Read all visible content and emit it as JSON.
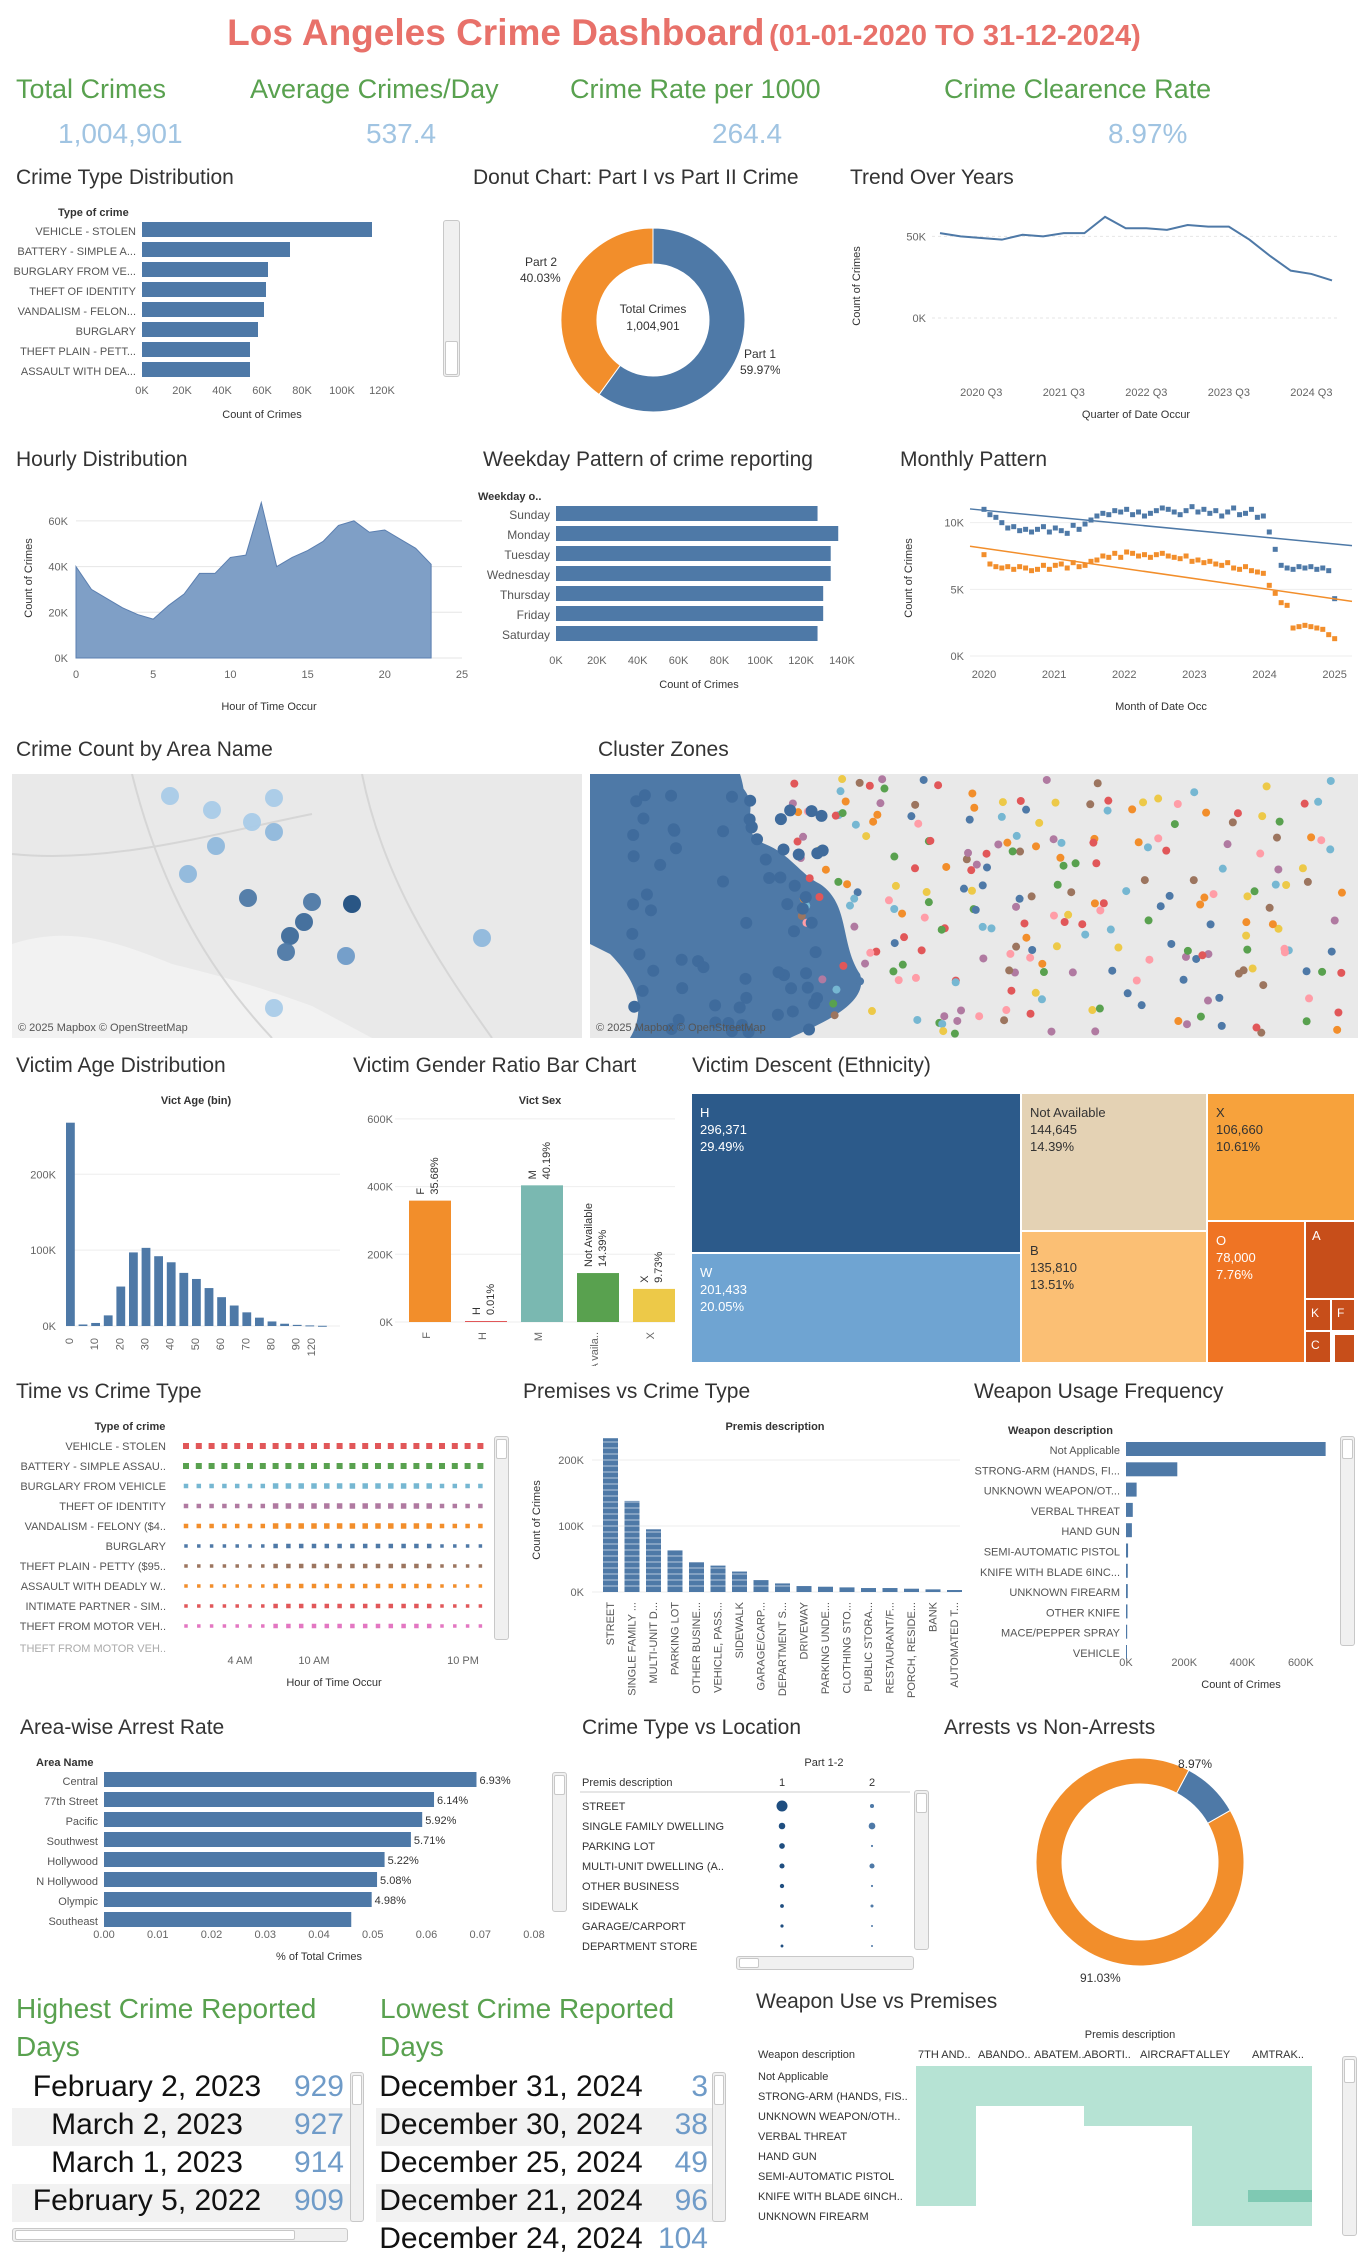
{
  "title": "Los Angeles Crime Dashboard",
  "date_range": "(01-01-2020 TO 31-12-2024)",
  "kpis": [
    {
      "label": "Total Crimes",
      "value": "1,004,901"
    },
    {
      "label": "Average Crimes/Day",
      "value": "537.4"
    },
    {
      "label": "Crime Rate per 1000",
      "value": "264.4"
    },
    {
      "label": "Crime Clearence Rate",
      "value": "8.97%"
    }
  ],
  "colors": {
    "blue": "#4e79a7",
    "orange": "#f28e2b",
    "green": "#59a14f",
    "title": "#e8716a",
    "teal": "#7ab8b1",
    "mint": "#b6e3d4"
  },
  "titles": {
    "crime_type": "Crime Type Distribution",
    "donut": "Donut Chart: Part I vs Part II Crime",
    "trend": "Trend Over Years",
    "hourly": "Hourly Distribution",
    "weekday": "Weekday Pattern of crime reporting",
    "monthly": "Monthly Pattern",
    "area_map": "Crime Count by Area Name",
    "cluster": "Cluster Zones",
    "age": "Victim Age Distribution",
    "gender": "Victim Gender Ratio Bar Chart",
    "descent": "Victim Descent (Ethnicity)",
    "time_type": "Time vs Crime Type",
    "premises": "Premises vs Crime Type",
    "weapon": "Weapon Usage Frequency",
    "arrest_rate": "Area-wise Arrest Rate",
    "type_loc": "Crime Type vs Location",
    "arrests": "Arrests vs Non-Arrests",
    "highest": "Highest Crime Reported Days",
    "lowest": "Lowest Crime Reported Days",
    "weapon_prem": "Weapon Use vs Premises"
  },
  "map_caption": "© 2025 Mapbox © OpenStreetMap",
  "crime_type_chart": {
    "header": "Type of crime",
    "xlabel": "Count of Crimes",
    "categories": [
      "VEHICLE - STOLEN",
      "BATTERY - SIMPLE A...",
      "BURGLARY FROM VE...",
      "THEFT OF IDENTITY",
      "VANDALISM - FELON...",
      "BURGLARY",
      "THEFT PLAIN - PETT...",
      "ASSAULT WITH DEA..."
    ],
    "values": [
      115000,
      74000,
      63000,
      62000,
      61000,
      58000,
      54000,
      54000
    ],
    "ticks": [
      "0K",
      "20K",
      "40K",
      "60K",
      "80K",
      "100K",
      "120K"
    ]
  },
  "donut_chart": {
    "center_label": "Total Crimes",
    "center_value": "1,004,901",
    "slices": [
      {
        "name": "Part 1",
        "pct": "59.97%",
        "value": 59.97
      },
      {
        "name": "Part 2",
        "pct": "40.03%",
        "value": 40.03
      }
    ]
  },
  "trend_chart": {
    "xlabel": "Quarter of Date Occur",
    "ylabel": "Count of Crimes",
    "yticks": [
      "50K",
      "0K"
    ],
    "xticks": [
      "2020 Q3",
      "2021 Q3",
      "2022 Q3",
      "2023 Q3",
      "2024 Q3"
    ],
    "values": [
      52000,
      50000,
      49000,
      48000,
      51000,
      50000,
      52000,
      52000,
      62000,
      55000,
      55000,
      54000,
      57000,
      56000,
      56000,
      48000,
      38000,
      29000,
      27000,
      23000
    ]
  },
  "hourly_chart": {
    "xlabel": "Hour of Time Occur",
    "ylabel": "Count of Crimes",
    "yticks": [
      "60K",
      "40K",
      "20K",
      "0K"
    ],
    "xticks": [
      "0",
      "5",
      "10",
      "15",
      "20",
      "25"
    ],
    "values": [
      40000,
      30000,
      26000,
      22000,
      19000,
      17000,
      23000,
      28000,
      37000,
      37000,
      44000,
      45000,
      68000,
      40000,
      44000,
      47000,
      51000,
      58000,
      60000,
      55000,
      56000,
      52000,
      48000,
      41000
    ]
  },
  "weekday_chart": {
    "header": "Weekday o..",
    "xlabel": "Count of Crimes",
    "categories": [
      "Sunday",
      "Monday",
      "Tuesday",
      "Wednesday",
      "Thursday",
      "Friday",
      "Saturday"
    ],
    "values": [
      139000,
      150000,
      146000,
      146000,
      142000,
      142000,
      139000
    ],
    "ticks": [
      "0K",
      "20K",
      "40K",
      "60K",
      "80K",
      "100K",
      "120K",
      "140K"
    ]
  },
  "monthly_chart": {
    "xlabel": "Month of Date Occ",
    "ylabel": "Count of Crimes",
    "yticks": [
      "10K",
      "5K",
      "0K"
    ],
    "xticks": [
      "2020",
      "2021",
      "2022",
      "2023",
      "2024",
      "2025"
    ],
    "series": [
      {
        "name": "Part 1",
        "color": "#4e79a7",
        "values": [
          11000,
          10600,
          10400,
          10000,
          9600,
          9700,
          9400,
          9500,
          9300,
          9500,
          9700,
          9300,
          9600,
          9400,
          9200,
          9800,
          9500,
          9900,
          10200,
          10500,
          10700,
          10600,
          10900,
          10800,
          11000,
          10600,
          10800,
          10500,
          10700,
          10900,
          11100,
          11000,
          10800,
          10600,
          10900,
          11200,
          10800,
          11000,
          10700,
          10900,
          10500,
          10800,
          11100,
          10600,
          10700,
          11000,
          10400,
          10500,
          9300,
          8000,
          6800,
          6600,
          6500,
          6700,
          6600,
          6700,
          6500,
          6600,
          6400,
          4300
        ]
      },
      {
        "name": "Part 2",
        "color": "#f28e2b",
        "values": [
          7600,
          6900,
          6700,
          6600,
          6700,
          6500,
          6700,
          6600,
          6400,
          6500,
          6800,
          6500,
          6800,
          6900,
          6600,
          7000,
          6700,
          6800,
          7100,
          7200,
          7500,
          7400,
          7700,
          7400,
          7800,
          7700,
          7500,
          7600,
          7400,
          7600,
          7700,
          7500,
          7400,
          7300,
          7500,
          7100,
          7200,
          7000,
          7100,
          6900,
          6800,
          7000,
          6600,
          6500,
          6700,
          6400,
          6300,
          6200,
          5300,
          4700,
          4000,
          3800,
          2100,
          2200,
          2300,
          2200,
          2100,
          2000,
          1600,
          1300
        ]
      }
    ]
  },
  "age_chart": {
    "header": "Vict Age (bin)",
    "yticks": [
      "200K",
      "100K",
      "0K"
    ],
    "xticks": [
      "0",
      "10",
      "20",
      "30",
      "40",
      "50",
      "60",
      "70",
      "80",
      "90",
      "120"
    ],
    "values": [
      268000,
      2000,
      4000,
      14000,
      52000,
      97000,
      103000,
      92000,
      84000,
      70000,
      62000,
      50000,
      38000,
      27000,
      18000,
      11000,
      6000,
      3000,
      1500,
      800,
      300
    ]
  },
  "gender_chart": {
    "header": "Vict Sex",
    "yticks": [
      "600K",
      "400K",
      "200K",
      "0K"
    ],
    "bars": [
      {
        "cat": "F",
        "pct": "35.68%",
        "value": 358600,
        "color": "#f28e2b"
      },
      {
        "cat": "H",
        "pct": "0.01%",
        "value": 100,
        "color": "#e15759"
      },
      {
        "cat": "M",
        "pct": "40.19%",
        "value": 403800,
        "color": "#7ab8b1"
      },
      {
        "cat": "Not A vaila..",
        "label": "Not Available",
        "pct": "14.39%",
        "value": 144600,
        "color": "#59a14f"
      },
      {
        "cat": "X",
        "pct": "9.73%",
        "value": 97800,
        "color": "#edc948"
      }
    ]
  },
  "descent": {
    "tiles": [
      {
        "code": "H",
        "value": "296,371",
        "pct": "29.49%"
      },
      {
        "code": "W",
        "value": "201,433",
        "pct": "20.05%"
      },
      {
        "code": "Not Available",
        "value": "144,645",
        "pct": "14.39%"
      },
      {
        "code": "B",
        "value": "135,810",
        "pct": "13.51%"
      },
      {
        "code": "X",
        "value": "106,660",
        "pct": "10.61%"
      },
      {
        "code": "O",
        "value": "78,000",
        "pct": "7.76%"
      },
      {
        "code": "A"
      },
      {
        "code": "K"
      },
      {
        "code": "F"
      },
      {
        "code": "C"
      }
    ]
  },
  "time_type": {
    "header": "Type of crime",
    "xlabel": "Hour of Time Occur",
    "xticks": [
      "4 AM",
      "10 AM",
      "10 PM"
    ],
    "categories": [
      "VEHICLE - STOLEN",
      "BATTERY - SIMPLE ASSAU..",
      "BURGLARY FROM VEHICLE",
      "THEFT OF IDENTITY",
      "VANDALISM - FELONY ($4..",
      "BURGLARY",
      "THEFT PLAIN - PETTY ($95..",
      "ASSAULT WITH DEADLY W..",
      "INTIMATE PARTNER - SIM..",
      "THEFT FROM MOTOR VEH..",
      "THEFT FROM MOTOR VEH.."
    ],
    "colors": [
      "#e15759",
      "#59a14f",
      "#76b7d2",
      "#b07aa1",
      "#f28e2b",
      "#4e79a7",
      "#9c755f",
      "#f28e2b",
      "#e15759",
      "#e377c2",
      "#e15759"
    ]
  },
  "premises_chart": {
    "header": "Premis description",
    "ylabel": "Count of Crimes",
    "yticks": [
      "200K",
      "100K",
      "0K"
    ],
    "categories": [
      "STREET",
      "SINGLE FAMILY ...",
      "MULTI-UNIT D...",
      "PARKING LOT",
      "OTHER BUSINE...",
      "VEHICLE, PASS...",
      "SIDEWALK",
      "GARAGE/CARP...",
      "DEPARTMENT S...",
      "DRIVEWAY",
      "PARKING UNDE...",
      "CLOTHING STO...",
      "PUBLIC STORA...",
      "RESTAURANT/F...",
      "PORCH, RESIDE...",
      "BANK",
      "AUTOMATED T..."
    ],
    "values": [
      233000,
      138000,
      95000,
      63000,
      45000,
      40000,
      31000,
      18000,
      13000,
      9000,
      8000,
      7000,
      6000,
      6000,
      5000,
      4000,
      3000
    ]
  },
  "weapon_chart": {
    "header": "Weapon description",
    "xlabel": "Count of Crimes",
    "ticks": [
      "0K",
      "200K",
      "400K",
      "600K"
    ],
    "categories": [
      "Not Applicable",
      "STRONG-ARM (HANDS, FI...",
      "UNKNOWN WEAPON/OT...",
      "VERBAL THREAT",
      "HAND GUN",
      "SEMI-AUTOMATIC PISTOL",
      "KNIFE WITH BLADE 6INC...",
      "UNKNOWN FIREARM",
      "OTHER KNIFE",
      "MACE/PEPPER SPRAY",
      "VEHICLE"
    ],
    "values": [
      677000,
      174000,
      36000,
      23000,
      20000,
      7000,
      6000,
      6000,
      5000,
      4000,
      3000
    ]
  },
  "arrest_rate": {
    "header": "Area Name",
    "xlabel": "% of Total Crimes",
    "ticks": [
      "0.00",
      "0.01",
      "0.02",
      "0.03",
      "0.04",
      "0.05",
      "0.06",
      "0.07",
      "0.08"
    ],
    "categories": [
      "Central",
      "77th Street",
      "Pacific",
      "Southwest",
      "Hollywood",
      "N Hollywood",
      "Olympic",
      "Southeast"
    ],
    "values": [
      0.0693,
      0.0614,
      0.0592,
      0.0571,
      0.0522,
      0.0508,
      0.0498,
      0.046
    ],
    "labels": [
      "6.93%",
      "6.14%",
      "5.92%",
      "5.71%",
      "5.22%",
      "5.08%",
      "4.98%",
      ""
    ]
  },
  "type_loc": {
    "title_top": "Part 1-2",
    "header": "Premis description",
    "cols": [
      "1",
      "2"
    ],
    "rows": [
      "STREET",
      "SINGLE FAMILY DWELLING",
      "PARKING LOT",
      "MULTI-UNIT DWELLING (A..",
      "OTHER BUSINESS",
      "SIDEWALK",
      "GARAGE/CARPORT",
      "DEPARTMENT STORE"
    ],
    "p1": [
      130000,
      46000,
      35000,
      28000,
      20000,
      15000,
      11000,
      9000
    ],
    "p2": [
      18000,
      48000,
      5000,
      28000,
      5000,
      10000,
      3000,
      3000
    ]
  },
  "arrests_donut": {
    "slices": [
      {
        "name": "Arrests",
        "pct": "8.97%",
        "value": 8.97
      },
      {
        "name": "Non-Arrests",
        "pct": "91.03%",
        "value": 91.03
      }
    ]
  },
  "highest_days": [
    {
      "date": "February 2, 2023",
      "count": "929"
    },
    {
      "date": "March 2, 2023",
      "count": "927"
    },
    {
      "date": "March 1, 2023",
      "count": "914"
    },
    {
      "date": "February 5, 2022",
      "count": "909"
    }
  ],
  "lowest_days": [
    {
      "date": "December 31, 2024",
      "count": "3"
    },
    {
      "date": "December 30, 2024",
      "count": "38"
    },
    {
      "date": "December 25, 2024",
      "count": "49"
    },
    {
      "date": "December 21, 2024",
      "count": "96"
    },
    {
      "date": "December 24, 2024",
      "count": "104"
    }
  ],
  "weapon_prem": {
    "title_top": "Premis description",
    "header": "Weapon description",
    "cols": [
      "7TH AND..",
      "ABANDO..",
      "ABATEM..",
      "ABORTI..",
      "AIRCRAFT",
      "ALLEY",
      "AMTRAK.."
    ],
    "rows": [
      "Not Applicable",
      "STRONG-ARM (HANDS, FIS..",
      "UNKNOWN WEAPON/OTH..",
      "VERBAL THREAT",
      "HAND GUN",
      "SEMI-AUTOMATIC PISTOL",
      "KNIFE WITH BLADE 6INCH..",
      "UNKNOWN FIREARM"
    ]
  }
}
